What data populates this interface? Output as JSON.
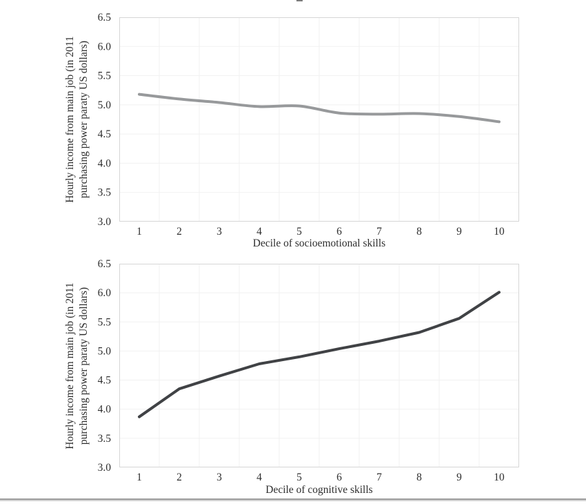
{
  "colors": {
    "background": "#ffffff",
    "plot_border": "#d6d6d6",
    "gridline": "#f1f1f1",
    "tick_text": "#2e2e2e",
    "divider_dark": "#9c9c9c",
    "divider_light": "#d4d4d4",
    "socioemotional_line": "#97999b",
    "cognitive_line": "#404245"
  },
  "chart_data": [
    {
      "type": "line",
      "title": "",
      "categories": [
        "1",
        "2",
        "3",
        "4",
        "5",
        "6",
        "7",
        "8",
        "9",
        "10"
      ],
      "values": [
        5.18,
        5.1,
        5.04,
        4.97,
        4.98,
        4.86,
        4.84,
        4.85,
        4.8,
        4.71
      ],
      "xlabel": "Decile of socioemotional skills",
      "ylabel": "Hourly income from main job (in 2011 purchasing power paraty US dollars)",
      "ylabel_line1": "Hourly income from main job (in 2011",
      "ylabel_line2": "purchasing power paraty US dollars)",
      "ylim": [
        3.0,
        6.5
      ],
      "yticks": [
        "6.5",
        "6.0",
        "5.5",
        "5.0",
        "4.5",
        "4.0",
        "3.5",
        "3.0"
      ],
      "grid": true,
      "legend": "none",
      "line_color": "#97999b",
      "line_width": 4,
      "smooth": true
    },
    {
      "type": "line",
      "title": "",
      "categories": [
        "1",
        "2",
        "3",
        "4",
        "5",
        "6",
        "7",
        "8",
        "9",
        "10"
      ],
      "values": [
        3.87,
        4.35,
        4.57,
        4.78,
        4.9,
        5.04,
        5.17,
        5.32,
        5.56,
        6.01
      ],
      "xlabel": "Decile of cognitive skills",
      "ylabel": "Hourly income from main job (in 2011 purchasing power paraty US dollars)",
      "ylabel_line1": "Hourly income from main job (in 2011",
      "ylabel_line2": "purchasing power paraty US dollars)",
      "ylim": [
        3.0,
        6.5
      ],
      "yticks": [
        "6.5",
        "6.0",
        "5.5",
        "5.0",
        "4.5",
        "4.0",
        "3.5",
        "3.0"
      ],
      "grid": true,
      "legend": "none",
      "line_color": "#404245",
      "line_width": 4,
      "smooth": false
    }
  ]
}
